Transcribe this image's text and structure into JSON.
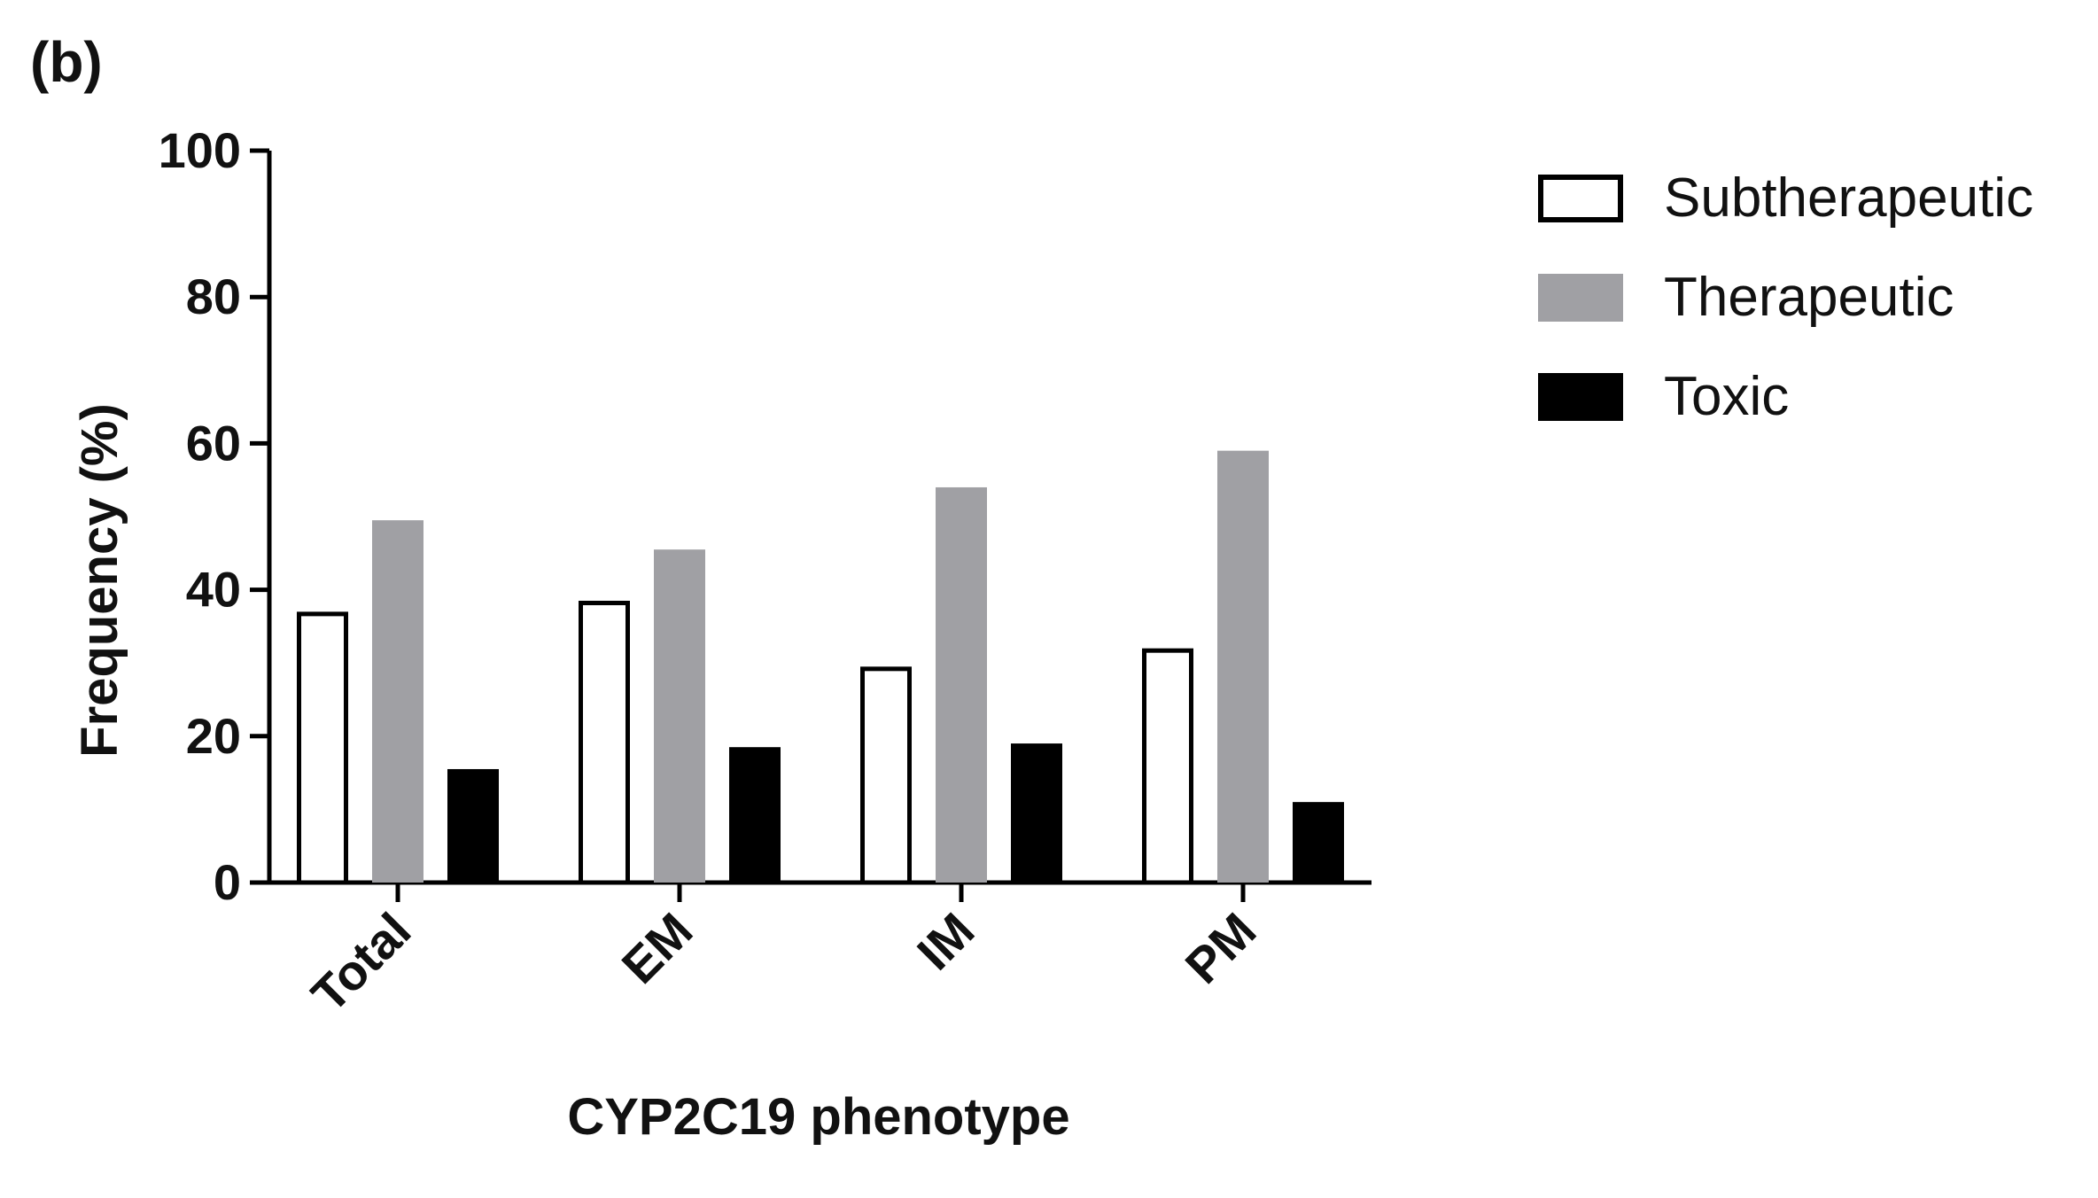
{
  "panel_label": "(b)",
  "chart_data": {
    "type": "bar",
    "title": "",
    "xlabel": "CYP2C19 phenotype",
    "ylabel": "Frequency (%)",
    "ylim": [
      0,
      100
    ],
    "yticks": [
      0,
      20,
      40,
      60,
      80,
      100
    ],
    "categories": [
      "Total",
      "EM",
      "IM",
      "PM"
    ],
    "series": [
      {
        "name": "Subtherapeutic",
        "values": [
          37,
          38.5,
          29.5,
          32
        ],
        "fill": "#ffffff",
        "stroke": "#000000"
      },
      {
        "name": "Therapeutic",
        "values": [
          49.5,
          45.5,
          54,
          59
        ],
        "fill": "#a0a0a4",
        "stroke": "none"
      },
      {
        "name": "Toxic",
        "values": [
          15.5,
          18.5,
          19,
          11
        ],
        "fill": "#000000",
        "stroke": "none"
      }
    ],
    "grid": false,
    "legend_position": "top-right"
  }
}
